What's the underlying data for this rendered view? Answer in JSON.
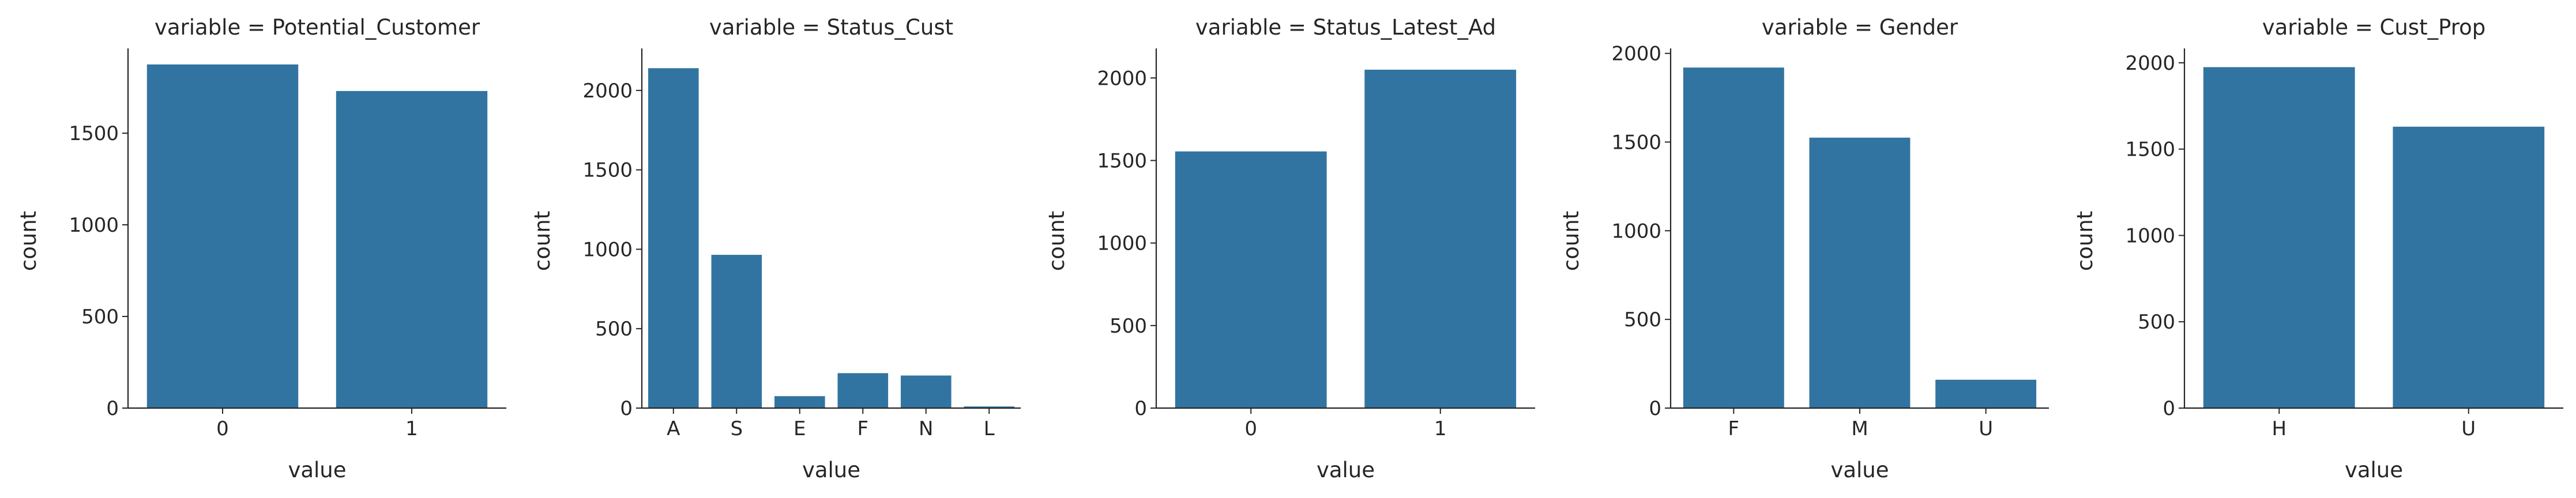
{
  "chart_data": [
    {
      "type": "bar",
      "title": "variable = Potential_Customer",
      "xlabel": "value",
      "ylabel": "count",
      "categories": [
        "0",
        "1"
      ],
      "values": [
        1875,
        1730
      ],
      "ylim": [
        0,
        1950
      ],
      "yticks": [
        0,
        500,
        1000,
        1500
      ]
    },
    {
      "type": "bar",
      "title": "variable = Status_Cust",
      "xlabel": "value",
      "ylabel": "count",
      "categories": [
        "A",
        "S",
        "E",
        "F",
        "N",
        "L"
      ],
      "values": [
        2140,
        965,
        75,
        220,
        205,
        10
      ],
      "ylim": [
        0,
        2250
      ],
      "yticks": [
        0,
        500,
        1000,
        1500,
        2000
      ]
    },
    {
      "type": "bar",
      "title": "variable = Status_Latest_Ad",
      "xlabel": "value",
      "ylabel": "count",
      "categories": [
        "0",
        "1"
      ],
      "values": [
        1555,
        2050
      ],
      "ylim": [
        0,
        2165
      ],
      "yticks": [
        0,
        500,
        1000,
        1500,
        2000
      ]
    },
    {
      "type": "bar",
      "title": "variable = Gender",
      "xlabel": "value",
      "ylabel": "count",
      "categories": [
        "F",
        "M",
        "U"
      ],
      "values": [
        1920,
        1525,
        160
      ],
      "ylim": [
        0,
        2015
      ],
      "yticks": [
        0,
        500,
        1000,
        1500,
        2000
      ]
    },
    {
      "type": "bar",
      "title": "variable = Cust_Prop",
      "xlabel": "value",
      "ylabel": "count",
      "categories": [
        "H",
        "U"
      ],
      "values": [
        1975,
        1630
      ],
      "ylim": [
        0,
        2070
      ],
      "yticks": [
        0,
        500,
        1000,
        1500,
        2000
      ]
    }
  ],
  "colors": {
    "bar": "#3274a1",
    "axis": "#262626"
  }
}
